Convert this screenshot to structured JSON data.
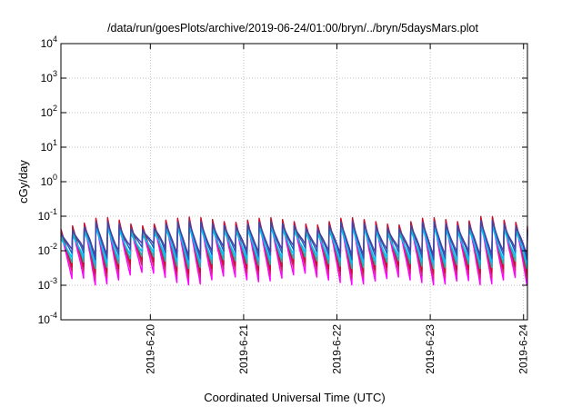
{
  "chart_data": {
    "type": "line",
    "title": "/data/run/goesPlots/archive/2019-06-24/01:00/bryn/../bryn/5daysMars.plot",
    "xlabel": "Coordinated Universal Time (UTC)",
    "ylabel": "cGy/day",
    "yscale": "log",
    "ylim": [
      0.0001,
      10000
    ],
    "y_ticks": [
      {
        "base": "10",
        "exp": "-4"
      },
      {
        "base": "10",
        "exp": "-3"
      },
      {
        "base": "10",
        "exp": "-2"
      },
      {
        "base": "10",
        "exp": "-1"
      },
      {
        "base": "10",
        "exp": "0"
      },
      {
        "base": "10",
        "exp": "1"
      },
      {
        "base": "10",
        "exp": "2"
      },
      {
        "base": "10",
        "exp": "3"
      },
      {
        "base": "10",
        "exp": "4"
      }
    ],
    "xlim": [
      "2019-06-19 01:00",
      "2019-06-24 01:00"
    ],
    "x_ticks": [
      "2019-6-20",
      "2019-6-21",
      "2019-6-22",
      "2019-6-23",
      "2019-6-24"
    ],
    "grid": true,
    "legend": "none",
    "cycle_hours": 3,
    "envelope": {
      "x": [
        "2019-06-19 01:00",
        "2019-06-19 03:00",
        "2019-06-19 06:00",
        "2019-06-19 09:00",
        "2019-06-19 12:00",
        "2019-06-19 15:00",
        "2019-06-19 18:00",
        "2019-06-19 21:00",
        "2019-06-20 00:00",
        "2019-06-20 03:00",
        "2019-06-20 06:00",
        "2019-06-20 09:00",
        "2019-06-20 12:00",
        "2019-06-20 15:00",
        "2019-06-20 18:00",
        "2019-06-20 21:00",
        "2019-06-21 00:00",
        "2019-06-21 03:00",
        "2019-06-21 06:00",
        "2019-06-21 09:00",
        "2019-06-21 12:00",
        "2019-06-21 15:00",
        "2019-06-21 18:00",
        "2019-06-21 21:00",
        "2019-06-22 00:00",
        "2019-06-22 03:00",
        "2019-06-22 06:00",
        "2019-06-22 09:00",
        "2019-06-22 12:00",
        "2019-06-22 15:00",
        "2019-06-22 18:00",
        "2019-06-22 21:00",
        "2019-06-23 00:00",
        "2019-06-23 03:00",
        "2019-06-23 06:00",
        "2019-06-23 09:00",
        "2019-06-23 12:00",
        "2019-06-23 15:00",
        "2019-06-23 18:00",
        "2019-06-23 21:00",
        "2019-06-24 00:00",
        "2019-06-24 01:00"
      ],
      "peak": [
        0.04,
        0.05,
        0.05,
        0.08,
        0.09,
        0.08,
        0.06,
        0.05,
        0.05,
        0.07,
        0.08,
        0.09,
        0.09,
        0.08,
        0.07,
        0.06,
        0.07,
        0.08,
        0.09,
        0.08,
        0.07,
        0.06,
        0.05,
        0.06,
        0.08,
        0.09,
        0.08,
        0.07,
        0.06,
        0.05,
        0.06,
        0.08,
        0.09,
        0.08,
        0.07,
        0.06,
        0.09,
        0.1,
        0.08,
        0.06,
        0.07,
        0.05
      ],
      "trough": [
        0.001,
        0.0012,
        0.0015,
        0.0008,
        0.0008,
        0.001,
        0.0015,
        0.002,
        0.002,
        0.0015,
        0.001,
        0.0008,
        0.0008,
        0.001,
        0.0015,
        0.0015,
        0.0012,
        0.001,
        0.001,
        0.0012,
        0.0015,
        0.002,
        0.0015,
        0.0012,
        0.001,
        0.0008,
        0.0008,
        0.001,
        0.0012,
        0.0015,
        0.0012,
        0.001,
        0.0008,
        0.0008,
        0.001,
        0.0012,
        0.0008,
        0.0008,
        0.001,
        0.0015,
        0.001,
        0.0008
      ]
    },
    "series": [
      {
        "color": "#ff00ff",
        "peak_factor": 0.85,
        "trough_factor": 1.0
      },
      {
        "color": "#d62070",
        "peak_factor": 0.95,
        "trough_factor": 1.6
      },
      {
        "color": "#c8102e",
        "peak_factor": 1.05,
        "trough_factor": 2.2
      },
      {
        "color": "#20b2aa",
        "peak_factor": 0.7,
        "trough_factor": 3.2
      },
      {
        "color": "#00bfff",
        "peak_factor": 0.55,
        "trough_factor": 4.5
      },
      {
        "color": "#1e5fbf",
        "peak_factor": 0.8,
        "trough_factor": 6.0
      },
      {
        "color": "#4b3fa0",
        "peak_factor": 0.75,
        "trough_factor": 8.0
      }
    ]
  }
}
